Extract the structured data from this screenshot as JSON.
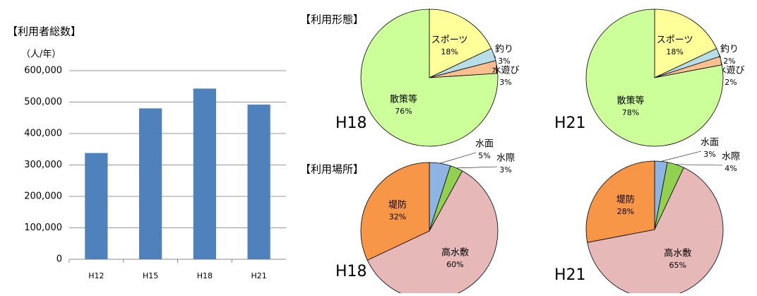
{
  "chart_data": [
    {
      "type": "bar",
      "title": "【利用者総数】",
      "unit": "（人/年）",
      "categories": [
        "H12",
        "H15",
        "H18",
        "H21"
      ],
      "values": [
        338000,
        480000,
        543000,
        492000
      ],
      "color": "#4f81bd",
      "ylim": [
        0,
        600000
      ],
      "yticks": [
        0,
        {
          "value": 100000,
          "label": "100,000"
        },
        {
          "value": 200000,
          "label": "200,000"
        },
        {
          "value": 300000,
          "label": "300,000"
        },
        {
          "value": 400000,
          "label": "400,000"
        },
        {
          "value": 500000,
          "label": "500,000"
        },
        {
          "value": 600000,
          "label": "600,000"
        }
      ],
      "grid": true
    },
    {
      "type": "pie",
      "title": "【利用形態】",
      "label": "H18",
      "categories": [
        "スポーツ",
        "釣り",
        "水遊び",
        "散策等"
      ],
      "values": [
        18,
        3,
        3,
        76
      ],
      "value_labels": [
        "18%",
        "3%",
        "3%",
        "76%"
      ],
      "colors": [
        "#ffff99",
        "#b7dee8",
        "#fabf8f",
        "#ccff99"
      ]
    },
    {
      "type": "pie",
      "label": "H21",
      "categories": [
        "スポーツ",
        "釣り",
        "水遊び",
        "散策等"
      ],
      "values": [
        18,
        2,
        2,
        78
      ],
      "value_labels": [
        "18%",
        "2%",
        "2%",
        "78%"
      ],
      "colors": [
        "#ffff99",
        "#b7dee8",
        "#fabf8f",
        "#ccff99"
      ]
    },
    {
      "type": "pie",
      "title": "【利用場所】",
      "label": "H18",
      "categories": [
        "水面",
        "水際",
        "高水敷",
        "堤防"
      ],
      "values": [
        5,
        3,
        60,
        32
      ],
      "value_labels": [
        "5%",
        "3%",
        "60%",
        "32%"
      ],
      "colors": [
        "#8eb4e3",
        "#92d050",
        "#e6b9b8",
        "#f79646"
      ]
    },
    {
      "type": "pie",
      "label": "H21",
      "categories": [
        "水面",
        "水際",
        "高水敷",
        "堤防"
      ],
      "values": [
        3,
        4,
        65,
        28
      ],
      "value_labels": [
        "3%",
        "4%",
        "65%",
        "28%"
      ],
      "colors": [
        "#8eb4e3",
        "#92d050",
        "#e6b9b8",
        "#f79646"
      ]
    }
  ]
}
